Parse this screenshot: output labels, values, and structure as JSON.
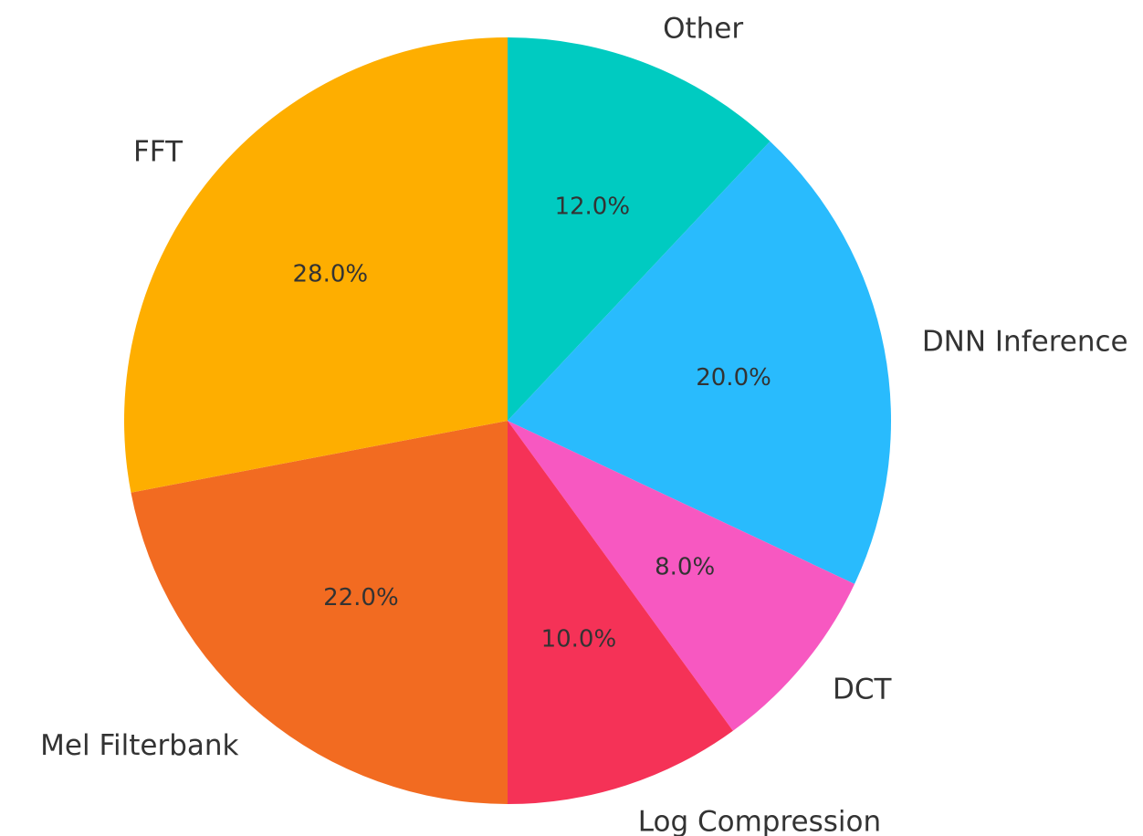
{
  "chart_data": {
    "type": "pie",
    "categories": [
      "Other",
      "DNN Inference",
      "DCT",
      "Log Compression",
      "Mel Filterbank",
      "FFT"
    ],
    "values": [
      12.0,
      20.0,
      8.0,
      10.0,
      22.0,
      28.0
    ],
    "percent_labels": [
      "12.0%",
      "20.0%",
      "8.0%",
      "10.0%",
      "22.0%",
      "28.0%"
    ],
    "colors": [
      "#00CBC1",
      "#29BBFD",
      "#F758C1",
      "#F53257",
      "#F26B21",
      "#FEAE00"
    ],
    "start_angle_deg": 90,
    "direction": "clockwise",
    "legend": "none"
  }
}
